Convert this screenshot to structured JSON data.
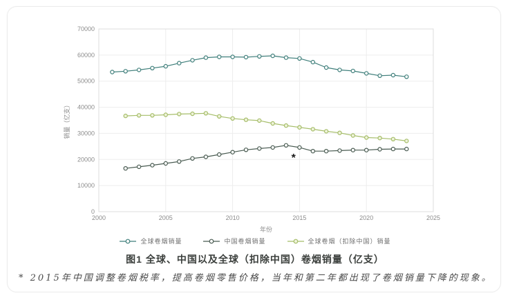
{
  "figure": {
    "title": "图1 全球、中国以及全球（扣除中国）卷烟销量（亿支）",
    "footnote": "* 2015年中国调整卷烟税率，提高卷烟零售价格，当年和第二年都出现了卷烟销量下降的现象。"
  },
  "chart_data": {
    "type": "line",
    "title": "图1 全球、中国以及全球（扣除中国）卷烟销量（亿支）",
    "xlabel": "年份",
    "ylabel": "销量（亿支）",
    "xlim": [
      2000,
      2025
    ],
    "ylim": [
      0,
      70000
    ],
    "xticks": [
      2000,
      2005,
      2010,
      2015,
      2020,
      2025
    ],
    "yticks": [
      0,
      10000,
      20000,
      30000,
      40000,
      50000,
      60000,
      70000
    ],
    "grid": true,
    "legend_position": "bottom",
    "series": [
      {
        "name": "全球卷烟销量",
        "color": "#3e7e7a",
        "marker_fill": "#ffffff",
        "x": [
          2001,
          2002,
          2003,
          2004,
          2005,
          2006,
          2007,
          2008,
          2009,
          2010,
          2011,
          2012,
          2013,
          2014,
          2015,
          2016,
          2017,
          2018,
          2019,
          2020,
          2021,
          2022,
          2023
        ],
        "values": [
          53500,
          53800,
          54300,
          55000,
          55700,
          56900,
          58000,
          59000,
          59300,
          59300,
          59200,
          59500,
          59700,
          59000,
          58700,
          57300,
          55200,
          54300,
          53900,
          53000,
          52100,
          52300,
          51700
        ]
      },
      {
        "name": "中国卷烟销量",
        "color": "#47594f",
        "marker_fill": "#ffffff",
        "x": [
          2002,
          2003,
          2004,
          2005,
          2006,
          2007,
          2008,
          2009,
          2010,
          2011,
          2012,
          2013,
          2014,
          2015,
          2016,
          2017,
          2018,
          2019,
          2020,
          2021,
          2022,
          2023
        ],
        "values": [
          16600,
          17200,
          17800,
          18500,
          19200,
          20400,
          21000,
          21900,
          22800,
          23700,
          24200,
          24600,
          25400,
          24600,
          23200,
          23200,
          23400,
          23600,
          23600,
          23900,
          24000,
          24000
        ]
      },
      {
        "name": "全球卷烟（扣除中国）销量",
        "color": "#a5bd68",
        "marker_fill": "#eef2da",
        "x": [
          2002,
          2003,
          2004,
          2005,
          2006,
          2007,
          2008,
          2009,
          2010,
          2011,
          2012,
          2013,
          2014,
          2015,
          2016,
          2017,
          2018,
          2019,
          2020,
          2021,
          2022,
          2023
        ],
        "values": [
          36700,
          36900,
          36900,
          37100,
          37400,
          37500,
          37700,
          36500,
          35700,
          35200,
          34900,
          33800,
          33000,
          32300,
          31600,
          30800,
          30200,
          29200,
          28400,
          28200,
          27800,
          27100
        ]
      }
    ],
    "annotation": {
      "text": "*",
      "x": 2014.55,
      "y": 20600
    }
  },
  "style": {
    "grid_color": "#ededed",
    "axis_color": "#dcdcdc",
    "tick_text_color": "#8c8c8c",
    "annotation_color": "#1a1a1a"
  }
}
